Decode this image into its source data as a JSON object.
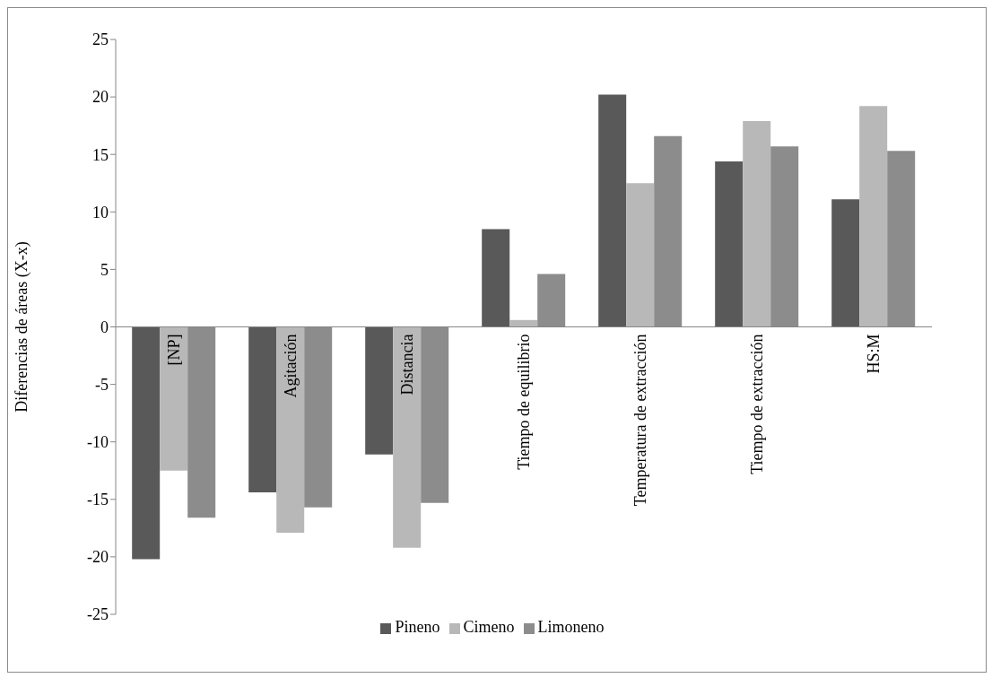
{
  "chart_data": {
    "type": "bar",
    "ylabel": "Diferencias de áreas (X-x)",
    "categories": [
      "[NP]",
      "Agitación",
      "Distancia",
      "Tiempo de equilibrio",
      "Temperatura de extracción",
      "Tiempo de extracción",
      "HS:M"
    ],
    "series": [
      {
        "name": "Pineno",
        "color": "#595959",
        "values": [
          -20.2,
          -14.4,
          -11.1,
          8.5,
          20.2,
          14.4,
          11.1
        ]
      },
      {
        "name": "Cimeno",
        "color": "#b8b8b8",
        "values": [
          -12.5,
          -17.9,
          -19.2,
          0.6,
          12.5,
          17.9,
          19.2
        ]
      },
      {
        "name": "Limoneno",
        "color": "#8c8c8c",
        "values": [
          -16.6,
          -15.7,
          -15.3,
          4.6,
          16.6,
          15.7,
          15.3
        ]
      }
    ],
    "ylim": [
      -25,
      25
    ],
    "yticks": [
      -25,
      -20,
      -15,
      -10,
      -5,
      0,
      5,
      10,
      15,
      20,
      25
    ],
    "legend": "bottom"
  }
}
